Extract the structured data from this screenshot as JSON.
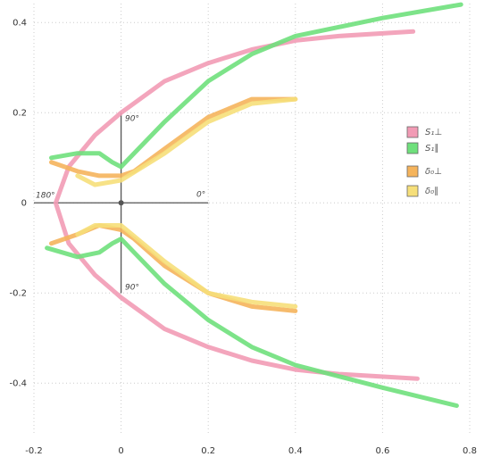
{
  "chart_data": {
    "type": "line",
    "xlim": [
      -0.2,
      0.8
    ],
    "ylim": [
      -0.55,
      0.45
    ],
    "xticks": [
      -0.2,
      0,
      0.2,
      0.4,
      0.6,
      0.8
    ],
    "yticks": [
      0.4,
      0.2,
      0,
      -0.2,
      -0.4
    ],
    "grid": true,
    "annotations": [
      "90°",
      "90°",
      "180°",
      "0°"
    ],
    "series": [
      {
        "name": "S₁⊥",
        "color": "#f29bb5",
        "x": [
          0.67,
          0.5,
          0.4,
          0.3,
          0.2,
          0.1,
          0,
          -0.06,
          -0.12,
          -0.15,
          -0.12,
          -0.06,
          0,
          0.1,
          0.2,
          0.3,
          0.4,
          0.5,
          0.68
        ],
        "values": [
          0.38,
          0.37,
          0.36,
          0.34,
          0.31,
          0.27,
          0.2,
          0.15,
          0.08,
          0,
          -0.09,
          -0.16,
          -0.21,
          -0.28,
          -0.32,
          -0.35,
          -0.37,
          -0.38,
          -0.39
        ]
      },
      {
        "name": "S₁∥",
        "color": "#6fe07c",
        "x": [
          0.78,
          0.6,
          0.4,
          0.3,
          0.2,
          0.1,
          0.03,
          0,
          -0.02,
          -0.05,
          -0.1,
          -0.16,
          null,
          -0.17,
          -0.1,
          -0.05,
          -0.02,
          0,
          0.03,
          0.1,
          0.2,
          0.3,
          0.4,
          0.6,
          0.77
        ],
        "values": [
          0.44,
          0.41,
          0.37,
          0.33,
          0.27,
          0.18,
          0.11,
          0.08,
          0.09,
          0.11,
          0.11,
          0.1,
          null,
          -0.1,
          -0.12,
          -0.11,
          -0.09,
          -0.08,
          -0.11,
          -0.18,
          -0.26,
          -0.32,
          -0.36,
          -0.41,
          -0.45
        ]
      },
      {
        "name": "δ₀⊥",
        "color": "#f5b45c",
        "x": [
          0.4,
          0.3,
          0.2,
          0.1,
          0.03,
          0,
          -0.05,
          -0.1,
          -0.16,
          null,
          -0.16,
          -0.1,
          -0.05,
          0,
          0.03,
          0.1,
          0.2,
          0.3,
          0.4
        ],
        "values": [
          0.23,
          0.23,
          0.19,
          0.12,
          0.07,
          0.06,
          0.06,
          0.07,
          0.09,
          null,
          -0.09,
          -0.07,
          -0.05,
          -0.06,
          -0.08,
          -0.14,
          -0.2,
          -0.23,
          -0.24
        ]
      },
      {
        "name": "δ₀∥",
        "color": "#f6df7a",
        "x": [
          0.4,
          0.3,
          0.2,
          0.1,
          0,
          -0.06,
          -0.1,
          null,
          -0.1,
          -0.06,
          0,
          0.1,
          0.2,
          0.3,
          0.4
        ],
        "values": [
          0.23,
          0.22,
          0.18,
          0.11,
          0.05,
          0.04,
          0.06,
          null,
          -0.07,
          -0.05,
          -0.05,
          -0.13,
          -0.2,
          -0.22,
          -0.23
        ]
      }
    ]
  }
}
